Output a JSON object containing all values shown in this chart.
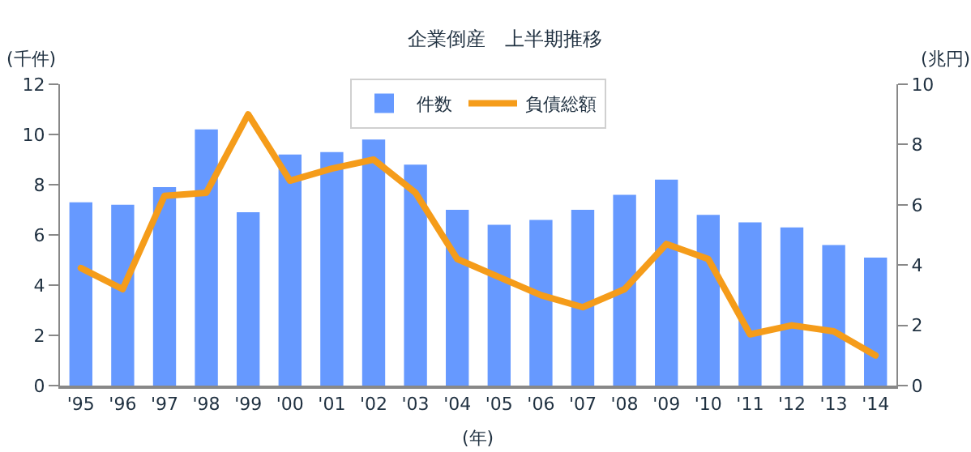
{
  "chart_data": {
    "type": "bar",
    "title": "企業倒産　上半期推移",
    "xlabel": "(年)",
    "ylabel": "(千件)",
    "y2label": "(兆円)",
    "categories": [
      "'95",
      "'96",
      "'97",
      "'98",
      "'99",
      "'00",
      "'01",
      "'02",
      "'03",
      "'04",
      "'05",
      "'06",
      "'07",
      "'08",
      "'09",
      "'10",
      "'11",
      "'12",
      "'13",
      "'14"
    ],
    "series": [
      {
        "name": "件数",
        "color": "#6699ff",
        "values": [
          7.3,
          7.2,
          7.9,
          10.2,
          6.9,
          9.2,
          9.3,
          9.8,
          8.8,
          7.0,
          6.4,
          6.6,
          7.0,
          7.6,
          8.2,
          6.8,
          6.5,
          6.3,
          5.6,
          5.1
        ]
      },
      {
        "name": "負債総額",
        "type": "line",
        "axis": "y2",
        "color": "#f59c1a",
        "values": [
          3.9,
          3.2,
          6.3,
          6.4,
          9.0,
          6.8,
          7.2,
          7.5,
          6.4,
          4.2,
          3.6,
          3.0,
          2.6,
          3.2,
          4.7,
          4.2,
          1.7,
          2.0,
          1.8,
          1.0
        ]
      }
    ],
    "ylim": [
      0,
      12
    ],
    "yticks": [
      0,
      2,
      4,
      6,
      8,
      10,
      12
    ],
    "y2lim": [
      0,
      10
    ],
    "y2ticks": [
      0,
      2,
      4,
      6,
      8,
      10
    ],
    "grid": false,
    "legend": "top",
    "line_style": "solid",
    "marker": "none"
  }
}
